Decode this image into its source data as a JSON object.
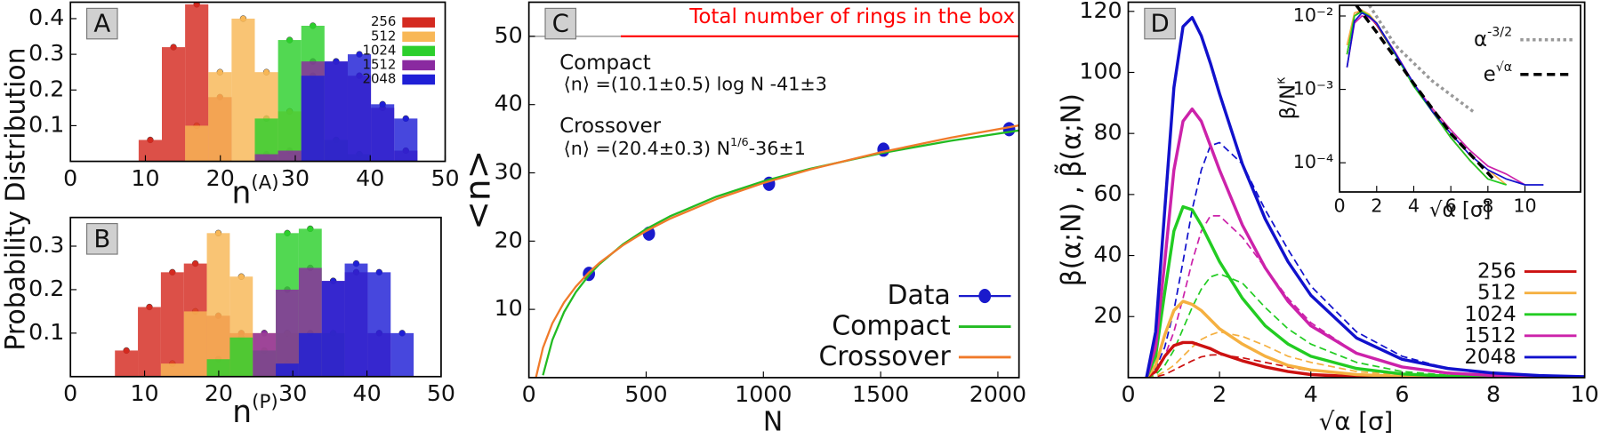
{
  "chart_data": [
    {
      "type": "histogram",
      "panel": "A",
      "y_label": "Probability Distribution",
      "x_label": "n",
      "x_label_sup": "(A)",
      "xlim": [
        0,
        50
      ],
      "ylim": [
        0,
        0.446
      ],
      "xticks": [
        0,
        10,
        20,
        30,
        40,
        50
      ],
      "yticks": [
        0.1,
        0.2,
        0.3,
        0.4
      ],
      "legend": "upper right",
      "series": [
        {
          "name": "256",
          "color": "#d42a20",
          "bins": [
            9.1,
            12.2,
            15.3,
            18.4,
            21.5
          ],
          "values": [
            0.06,
            0.32,
            0.44,
            0.18
          ]
        },
        {
          "name": "512",
          "color": "#f8b756",
          "bins": [
            15.3,
            18.4,
            21.5,
            24.6,
            27.7,
            30.8
          ],
          "values": [
            0.1,
            0.25,
            0.4,
            0.25,
            0.14
          ]
        },
        {
          "name": "1024",
          "color": "#2ccf2c",
          "bins": [
            24.6,
            27.7,
            30.8,
            33.9,
            37,
            40.1
          ],
          "values": [
            0.12,
            0.34,
            0.38,
            0.06,
            0.02
          ]
        },
        {
          "name": "1512",
          "color": "#8a2aa0",
          "bins": [
            24.6,
            27.7,
            30.8,
            33.9,
            37,
            40.1,
            43.2,
            46.3
          ],
          "values": [
            0.02,
            0.03,
            0.28,
            0.28,
            0.24,
            0.15,
            0.03
          ]
        },
        {
          "name": "2048",
          "color": "#1f1fd6",
          "bins": [
            30.8,
            33.9,
            37,
            40.1,
            43.2,
            46.3
          ],
          "values": [
            0.24,
            0.28,
            0.3,
            0.16,
            0.12
          ]
        }
      ]
    },
    {
      "type": "histogram",
      "panel": "B",
      "x_label": "n",
      "x_label_sup": "(P)",
      "xlim": [
        0,
        50
      ],
      "ylim": [
        0,
        0.366
      ],
      "xticks": [
        0,
        10,
        20,
        30,
        40,
        50
      ],
      "yticks": [
        0.1,
        0.2,
        0.3
      ],
      "series": [
        {
          "color": "#d42a20",
          "bins": [
            6,
            9.1,
            12.2,
            15.3,
            18.4,
            21.5,
            24.6
          ],
          "values": [
            0.06,
            0.16,
            0.24,
            0.26,
            0.14,
            0.1
          ]
        },
        {
          "color": "#f8b756",
          "bins": [
            12.2,
            15.3,
            18.4,
            21.5,
            24.6,
            27.7,
            30.8
          ],
          "values": [
            0.03,
            0.15,
            0.33,
            0.23,
            0.1,
            0.1
          ]
        },
        {
          "color": "#2ccf2c",
          "bins": [
            18.4,
            21.5,
            24.6,
            27.7,
            30.8,
            33.9,
            37
          ],
          "values": [
            0.04,
            0.09,
            0.06,
            0.33,
            0.34,
            0.1
          ]
        },
        {
          "color": "#8a2aa0",
          "bins": [
            24.6,
            27.7,
            30.8,
            33.9,
            37,
            40.1,
            43.2
          ],
          "values": [
            0.1,
            0.2,
            0.25,
            0.22,
            0.24,
            0.1
          ]
        },
        {
          "color": "#1f1fd6",
          "bins": [
            27.7,
            30.8,
            33.9,
            37,
            40.1,
            43.2,
            46.3
          ],
          "values": [
            0.03,
            0.1,
            0.22,
            0.26,
            0.24,
            0.1
          ]
        }
      ]
    },
    {
      "type": "line",
      "panel": "C",
      "x_label": "N",
      "y_label": "<n>",
      "xlim": [
        0,
        2090
      ],
      "ylim": [
        0,
        55
      ],
      "xticks": [
        0,
        500,
        1000,
        1500,
        2000
      ],
      "yticks": [
        10,
        20,
        30,
        40,
        50
      ],
      "legend": "lower right",
      "reference_line": {
        "value": 50,
        "label": "Total number of rings in the box",
        "color": "#ff0000"
      },
      "annotations": [
        "Compact",
        "⟨n⟩ =(10.1±0.5) log N -41±3",
        "Crossover"
      ],
      "annotation_formula": {
        "base": "⟨n⟩ =(20.4±0.3) N",
        "sup": "1/6",
        "tail": "-36±1"
      },
      "series": [
        {
          "name": "Data",
          "color": "#1a1acc",
          "x": [
            256,
            512,
            1024,
            1512,
            2048
          ],
          "values": [
            15.2,
            21.1,
            28.4,
            33.4,
            36.4
          ],
          "errors": [
            0.6,
            0.6,
            0.7,
            0.7,
            0.8
          ]
        },
        {
          "name": "Compact",
          "color": "#22bb22",
          "x": [
            60,
            100,
            150,
            200,
            256,
            300,
            400,
            500,
            600,
            800,
            1000,
            1200,
            1500,
            1800,
            2090
          ],
          "values": [
            0.35,
            5.51,
            9.61,
            12.51,
            15.01,
            16.61,
            19.51,
            21.77,
            23.61,
            26.52,
            28.77,
            30.61,
            32.87,
            34.71,
            36.21
          ]
        },
        {
          "name": "Crossover",
          "color": "#f07a2a",
          "x": [
            30,
            60,
            100,
            150,
            200,
            256,
            300,
            400,
            500,
            600,
            800,
            1000,
            1200,
            1500,
            1800,
            2090
          ],
          "values": [
            0,
            4.37,
            7.95,
            11.03,
            13.33,
            15.41,
            16.79,
            19.37,
            21.48,
            23.25,
            26.16,
            28.51,
            30.5,
            33.01,
            35.16,
            36.95
          ]
        }
      ]
    },
    {
      "type": "line",
      "panel": "D",
      "x_label": "√α [σ]",
      "y_label": "β(α;N) , β̃(α;N)",
      "xlim": [
        0,
        10
      ],
      "ylim": [
        0,
        123
      ],
      "xticks": [
        0,
        2,
        4,
        6,
        8,
        10
      ],
      "yticks": [
        20,
        40,
        60,
        80,
        100,
        120
      ],
      "legend": "lower right",
      "x": [
        0.4,
        0.6,
        0.8,
        1,
        1.2,
        1.4,
        1.6,
        1.8,
        2,
        2.5,
        3,
        3.5,
        4,
        5,
        6,
        7,
        8,
        9,
        10
      ],
      "series": [
        {
          "name": "256",
          "color": "#cc1111",
          "values": [
            0,
            2,
            7,
            10.5,
            11.5,
            11.5,
            10.5,
            9.5,
            8,
            5.5,
            3.5,
            2,
            1,
            0.3,
            0.1,
            0,
            0,
            0,
            0
          ]
        },
        {
          "name": "512",
          "color": "#f5b040",
          "values": [
            0,
            4,
            14,
            22,
            25,
            24,
            22,
            19,
            16,
            11,
            7,
            4,
            2.5,
            1,
            0.4,
            0.1,
            0,
            0,
            0
          ]
        },
        {
          "name": "1024",
          "color": "#22cc22",
          "values": [
            0,
            7,
            28,
            48,
            56,
            55,
            50,
            44,
            38,
            26,
            17,
            11,
            7,
            3,
            1.2,
            0.5,
            0.2,
            0.1,
            0
          ]
        },
        {
          "name": "1512",
          "color": "#cc22aa",
          "values": [
            0,
            10,
            38,
            68,
            84,
            88,
            84,
            76,
            68,
            50,
            36,
            25,
            17,
            8,
            3.5,
            1.5,
            0.7,
            0.3,
            0.1
          ]
        },
        {
          "name": "2048",
          "color": "#1111cc",
          "values": [
            0,
            15,
            55,
            95,
            115,
            118,
            112,
            103,
            93,
            70,
            52,
            38,
            27,
            13,
            6,
            3,
            1.5,
            0.7,
            0.3
          ]
        }
      ],
      "dashed_series": [
        {
          "color": "#cc1111",
          "values": [
            0,
            0.3,
            1,
            2.5,
            4,
            5.5,
            6.8,
            7.4,
            7.5,
            6.5,
            5,
            3.5,
            2.3,
            1,
            0.3,
            0.1,
            0,
            0,
            0
          ]
        },
        {
          "color": "#f5b040",
          "values": [
            0,
            0.5,
            2,
            4,
            7,
            10,
            12.5,
            14,
            15,
            13.5,
            10.5,
            7,
            5,
            2,
            0.8,
            0.3,
            0,
            0,
            0
          ]
        },
        {
          "color": "#22cc22",
          "values": [
            0,
            1,
            4,
            9,
            16,
            23,
            29,
            33,
            34,
            31,
            23,
            16,
            11,
            5,
            2,
            0.8,
            0.3,
            0,
            0
          ]
        },
        {
          "color": "#cc22aa",
          "values": [
            0,
            2,
            7,
            15,
            26,
            38,
            48,
            53,
            53,
            46,
            36,
            26,
            18,
            8,
            3.5,
            1.5,
            0.6,
            0.2,
            0
          ]
        },
        {
          "color": "#1111cc",
          "values": [
            0,
            3,
            10,
            22,
            38,
            55,
            68,
            76,
            77,
            70,
            55,
            42,
            30,
            15,
            7,
            3,
            1.5,
            0.6,
            0.2
          ]
        }
      ],
      "inset": {
        "type": "line",
        "x_label": "√α [σ]",
        "y_label": "β/N",
        "y_label_sup": "κ",
        "log_y": true,
        "xlim": [
          0,
          13
        ],
        "ylim": [
          4e-05,
          0.014
        ],
        "xticks": [
          0,
          2,
          4,
          6,
          8,
          10
        ],
        "yticks": [
          {
            "value": 0.01,
            "label": "10⁻²"
          },
          {
            "value": 0.001,
            "label": "10⁻³"
          },
          {
            "value": 0.0001,
            "label": "10⁻⁴"
          }
        ],
        "legend": "upper right",
        "x": [
          0.4,
          0.8,
          1.2,
          1.6,
          2,
          3,
          4,
          5,
          6,
          7,
          8,
          9,
          10,
          11
        ],
        "series": [
          {
            "color": "#cc1111",
            "values": [
              0.003,
              0.01,
              0.012,
              0.01,
              0.0075,
              0.003,
              0.0012,
              0.0005,
              0.00022,
              0.00011,
              6e-05,
              null,
              null,
              null
            ]
          },
          {
            "color": "#f5b040",
            "values": [
              0.004,
              0.011,
              0.012,
              0.0105,
              0.008,
              0.0031,
              0.0012,
              0.00052,
              0.00025,
              0.00013,
              8e-05,
              5e-05,
              null,
              null
            ]
          },
          {
            "color": "#22cc22",
            "values": [
              0.003,
              0.01,
              0.0115,
              0.01,
              0.0078,
              0.003,
              0.0011,
              0.0005,
              0.00022,
              0.00011,
              6e-05,
              5e-05,
              null,
              null
            ]
          },
          {
            "color": "#cc22aa",
            "values": [
              0.002,
              0.008,
              0.01,
              0.0095,
              0.0078,
              0.0032,
              0.0012,
              0.00055,
              0.00028,
              0.00015,
              9e-05,
              7e-05,
              5e-05,
              null
            ]
          },
          {
            "color": "#1111cc",
            "values": [
              0.002,
              0.0085,
              0.011,
              0.0098,
              0.008,
              0.0031,
              0.0012,
              0.0005,
              0.00025,
              0.00013,
              8e-05,
              6e-05,
              5e-05,
              5e-05
            ]
          }
        ],
        "guides": [
          {
            "name": "α",
            "sup": "-3/2",
            "color": "#999999",
            "style": "dotted",
            "x": [
              1.6,
              3,
              5,
              7.2
            ],
            "values": [
              0.014,
              0.004,
              0.0013,
              0.0005
            ]
          },
          {
            "name": "e",
            "sup": "√α",
            "color": "#000000",
            "style": "dashed",
            "x": [
              0.9,
              2,
              4,
              6,
              8.3
            ],
            "values": [
              0.014,
              0.006,
              0.0012,
              0.00025,
              6e-05
            ]
          }
        ]
      }
    }
  ]
}
